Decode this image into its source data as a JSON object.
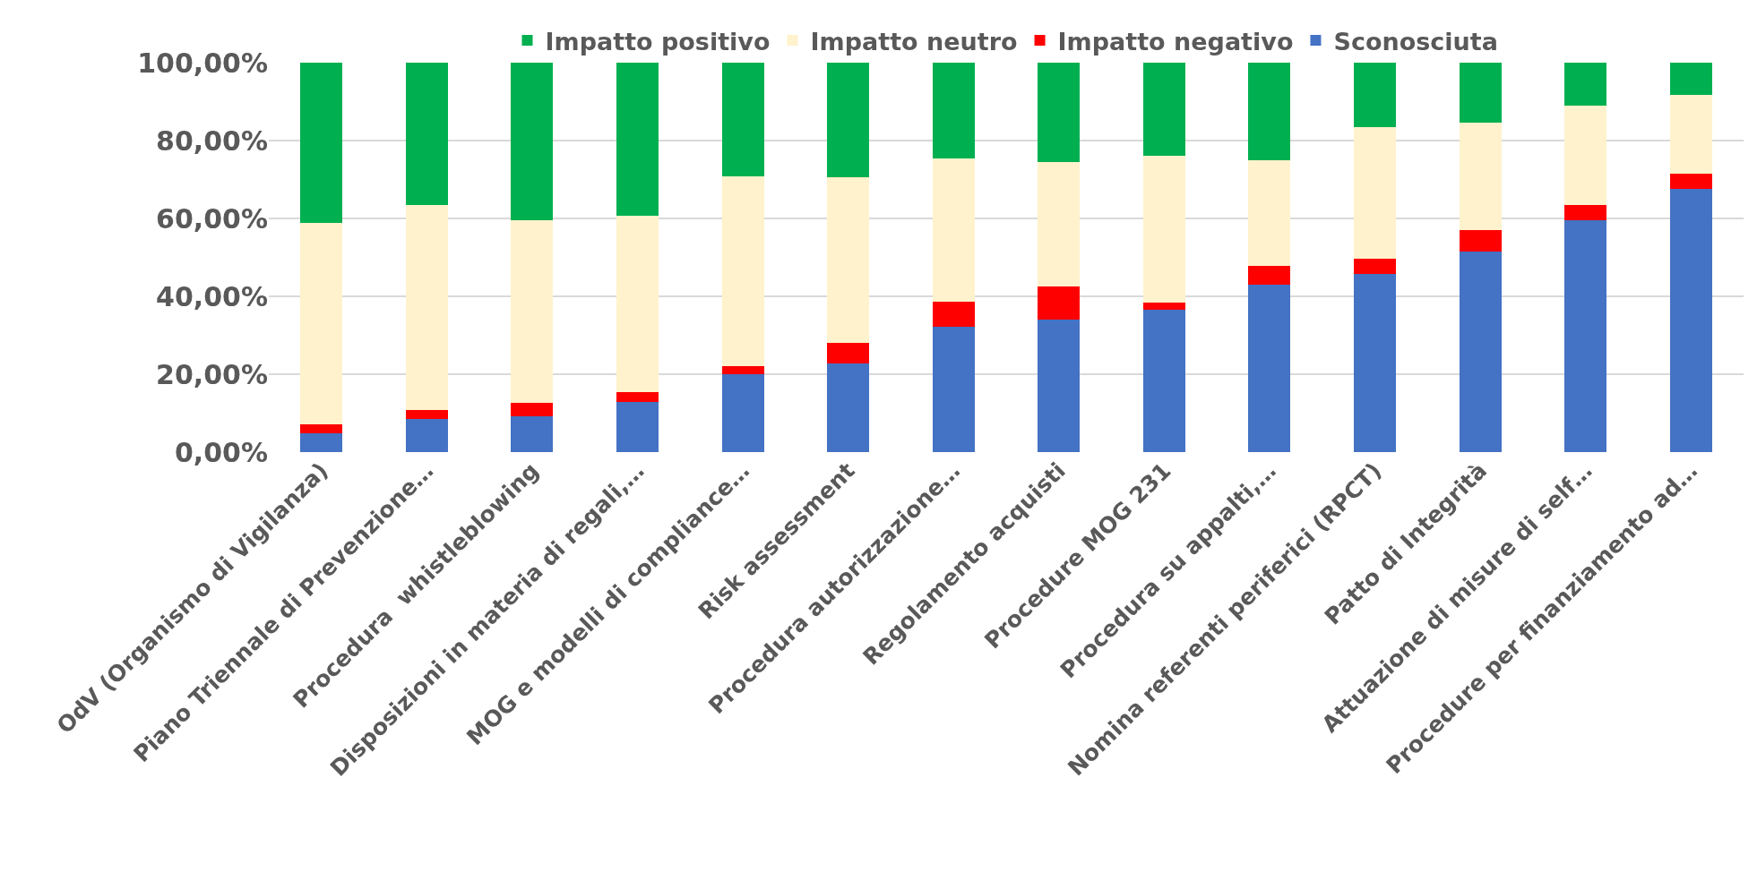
{
  "chart_data": {
    "type": "bar",
    "stacked": true,
    "categories": [
      "OdV (Organismo di Vigilanza)",
      "Piano Triennale di Prevenzione…",
      "Procedura  whistleblowing",
      "Disposizioni in materia di regali,…",
      "MOG e modelli di compliance…",
      "Risk assessment",
      "Procedura autorizzazione…",
      "Regolamento acquisti",
      "Procedure MOG 231",
      "Procedura su appalti,…",
      "Nomina referenti periferici (RPCT)",
      "Patto di Integrità",
      "Attuazione di misure di self…",
      "Procedure per finanziamento ad…"
    ],
    "series": [
      {
        "name": "Sconosciuta",
        "color": "#4472c4",
        "values": [
          4.8,
          8.5,
          9.2,
          12.9,
          20.0,
          22.8,
          32.2,
          34.1,
          36.6,
          43.0,
          45.8,
          51.6,
          59.5,
          67.5
        ]
      },
      {
        "name": "Impatto negativo",
        "color": "#ff0000",
        "values": [
          2.3,
          2.3,
          3.4,
          2.5,
          2.0,
          5.3,
          6.5,
          8.5,
          1.8,
          4.8,
          3.8,
          5.4,
          3.9,
          3.9
        ]
      },
      {
        "name": "Impatto neutro",
        "color": "#fff2cc",
        "values": [
          51.7,
          52.6,
          46.9,
          45.3,
          48.8,
          42.4,
          36.8,
          31.9,
          37.7,
          27.2,
          33.8,
          27.7,
          25.6,
          20.3
        ]
      },
      {
        "name": "Impatto positivo",
        "color": "#00b050",
        "values": [
          41.2,
          36.6,
          40.5,
          39.3,
          29.2,
          29.5,
          24.5,
          25.5,
          23.9,
          25.0,
          16.6,
          15.3,
          11.0,
          8.3
        ]
      }
    ],
    "ylim": [
      0,
      100
    ],
    "yticks": [
      {
        "value": 0,
        "label": "0,00%"
      },
      {
        "value": 20,
        "label": "20,00%"
      },
      {
        "value": 40,
        "label": "40,00%"
      },
      {
        "value": 60,
        "label": "60,00%"
      },
      {
        "value": 80,
        "label": "80,00%"
      },
      {
        "value": 100,
        "label": "100,00%"
      }
    ],
    "grid": "y",
    "legend": "top"
  }
}
